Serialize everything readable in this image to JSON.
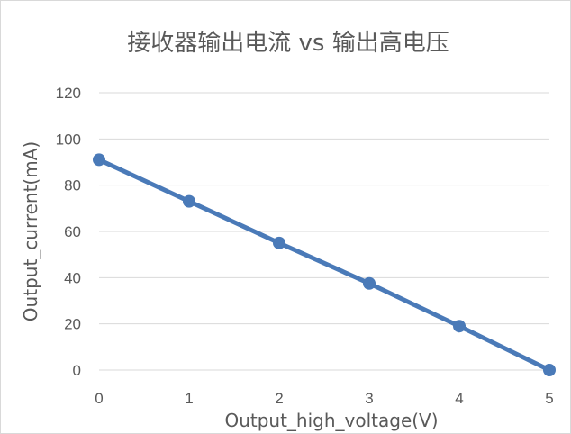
{
  "chart_data": {
    "type": "line",
    "title": "接收器输出电流 vs 输出高电压",
    "xlabel": "Output_high_voltage(V)",
    "ylabel": "Output_current(mA)",
    "x": [
      0,
      1,
      2,
      3,
      4,
      5
    ],
    "series": [
      {
        "values": [
          91,
          73,
          55,
          37.5,
          19,
          0
        ]
      }
    ],
    "xlim": [
      0,
      5
    ],
    "ylim": [
      0,
      120
    ],
    "x_ticks": [
      0,
      1,
      2,
      3,
      4,
      5
    ],
    "y_ticks": [
      0,
      20,
      40,
      60,
      80,
      100,
      120
    ],
    "grid": true,
    "colors": {
      "series": "#4a7ab8",
      "grid": "#d9d9d9",
      "text": "#595959"
    }
  }
}
